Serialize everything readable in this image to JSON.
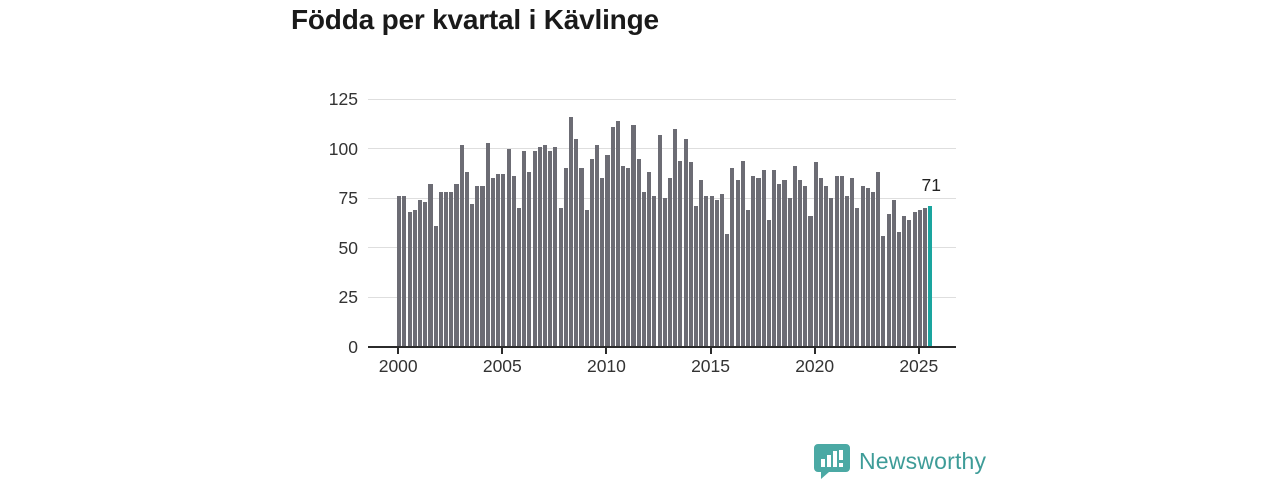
{
  "title": "Födda per kvartal i Kävlinge",
  "annotation": {
    "label": "71"
  },
  "branding": {
    "name": "Newsworthy"
  },
  "colors": {
    "bar": "#6c6c74",
    "highlight": "#1aa59f",
    "gridline": "#dedede",
    "axis": "#2b2b2b",
    "tick_text": "#333333",
    "title_text": "#1a1a1a",
    "logo_icon": "#4ba9a4",
    "logo_text": "#3e9c98"
  },
  "chart_data": {
    "type": "bar",
    "title": "Födda per kvartal i Kävlinge",
    "xlabel": "",
    "ylabel": "",
    "ylim": [
      0,
      125
    ],
    "yticks": [
      0,
      25,
      50,
      75,
      100,
      125
    ],
    "xticks": [
      2000,
      2005,
      2010,
      2015,
      2020,
      2025
    ],
    "grid": true,
    "legend": false,
    "categories": [
      "2000-Q1",
      "2000-Q2",
      "2000-Q3",
      "2000-Q4",
      "2001-Q1",
      "2001-Q2",
      "2001-Q3",
      "2001-Q4",
      "2002-Q1",
      "2002-Q2",
      "2002-Q3",
      "2002-Q4",
      "2003-Q1",
      "2003-Q2",
      "2003-Q3",
      "2003-Q4",
      "2004-Q1",
      "2004-Q2",
      "2004-Q3",
      "2004-Q4",
      "2005-Q1",
      "2005-Q2",
      "2005-Q3",
      "2005-Q4",
      "2006-Q1",
      "2006-Q2",
      "2006-Q3",
      "2006-Q4",
      "2007-Q1",
      "2007-Q2",
      "2007-Q3",
      "2007-Q4",
      "2008-Q1",
      "2008-Q2",
      "2008-Q3",
      "2008-Q4",
      "2009-Q1",
      "2009-Q2",
      "2009-Q3",
      "2009-Q4",
      "2010-Q1",
      "2010-Q2",
      "2010-Q3",
      "2010-Q4",
      "2011-Q1",
      "2011-Q2",
      "2011-Q3",
      "2011-Q4",
      "2012-Q1",
      "2012-Q2",
      "2012-Q3",
      "2012-Q4",
      "2013-Q1",
      "2013-Q2",
      "2013-Q3",
      "2013-Q4",
      "2014-Q1",
      "2014-Q2",
      "2014-Q3",
      "2014-Q4",
      "2015-Q1",
      "2015-Q2",
      "2015-Q3",
      "2015-Q4",
      "2016-Q1",
      "2016-Q2",
      "2016-Q3",
      "2016-Q4",
      "2017-Q1",
      "2017-Q2",
      "2017-Q3",
      "2017-Q4",
      "2018-Q1",
      "2018-Q2",
      "2018-Q3",
      "2018-Q4",
      "2019-Q1",
      "2019-Q2",
      "2019-Q3",
      "2019-Q4",
      "2020-Q1",
      "2020-Q2",
      "2020-Q3",
      "2020-Q4",
      "2021-Q1",
      "2021-Q2",
      "2021-Q3",
      "2021-Q4",
      "2022-Q1",
      "2022-Q2",
      "2022-Q3",
      "2022-Q4",
      "2023-Q1",
      "2023-Q2",
      "2023-Q3",
      "2023-Q4",
      "2024-Q1",
      "2024-Q2",
      "2024-Q3",
      "2024-Q4",
      "2025-Q1",
      "2025-Q2",
      "2025-Q3"
    ],
    "values": [
      76,
      76,
      68,
      69,
      74,
      73,
      82,
      61,
      78,
      78,
      78,
      82,
      102,
      88,
      72,
      81,
      81,
      103,
      85,
      87,
      87,
      100,
      86,
      70,
      99,
      88,
      99,
      101,
      102,
      99,
      101,
      70,
      90,
      116,
      105,
      90,
      69,
      95,
      102,
      85,
      97,
      111,
      114,
      91,
      90,
      112,
      95,
      78,
      88,
      76,
      107,
      75,
      85,
      110,
      94,
      105,
      93,
      71,
      84,
      76,
      76,
      74,
      77,
      57,
      90,
      84,
      94,
      69,
      86,
      85,
      89,
      64,
      89,
      82,
      84,
      75,
      91,
      84,
      81,
      66,
      93,
      85,
      81,
      75,
      86,
      86,
      76,
      85,
      70,
      81,
      80,
      78,
      88,
      56,
      67,
      74,
      58,
      66,
      64,
      68,
      69,
      70,
      71
    ],
    "highlight": {
      "category": "2025-Q3",
      "value": 71,
      "color": "#1aa59f",
      "label": "71"
    }
  }
}
